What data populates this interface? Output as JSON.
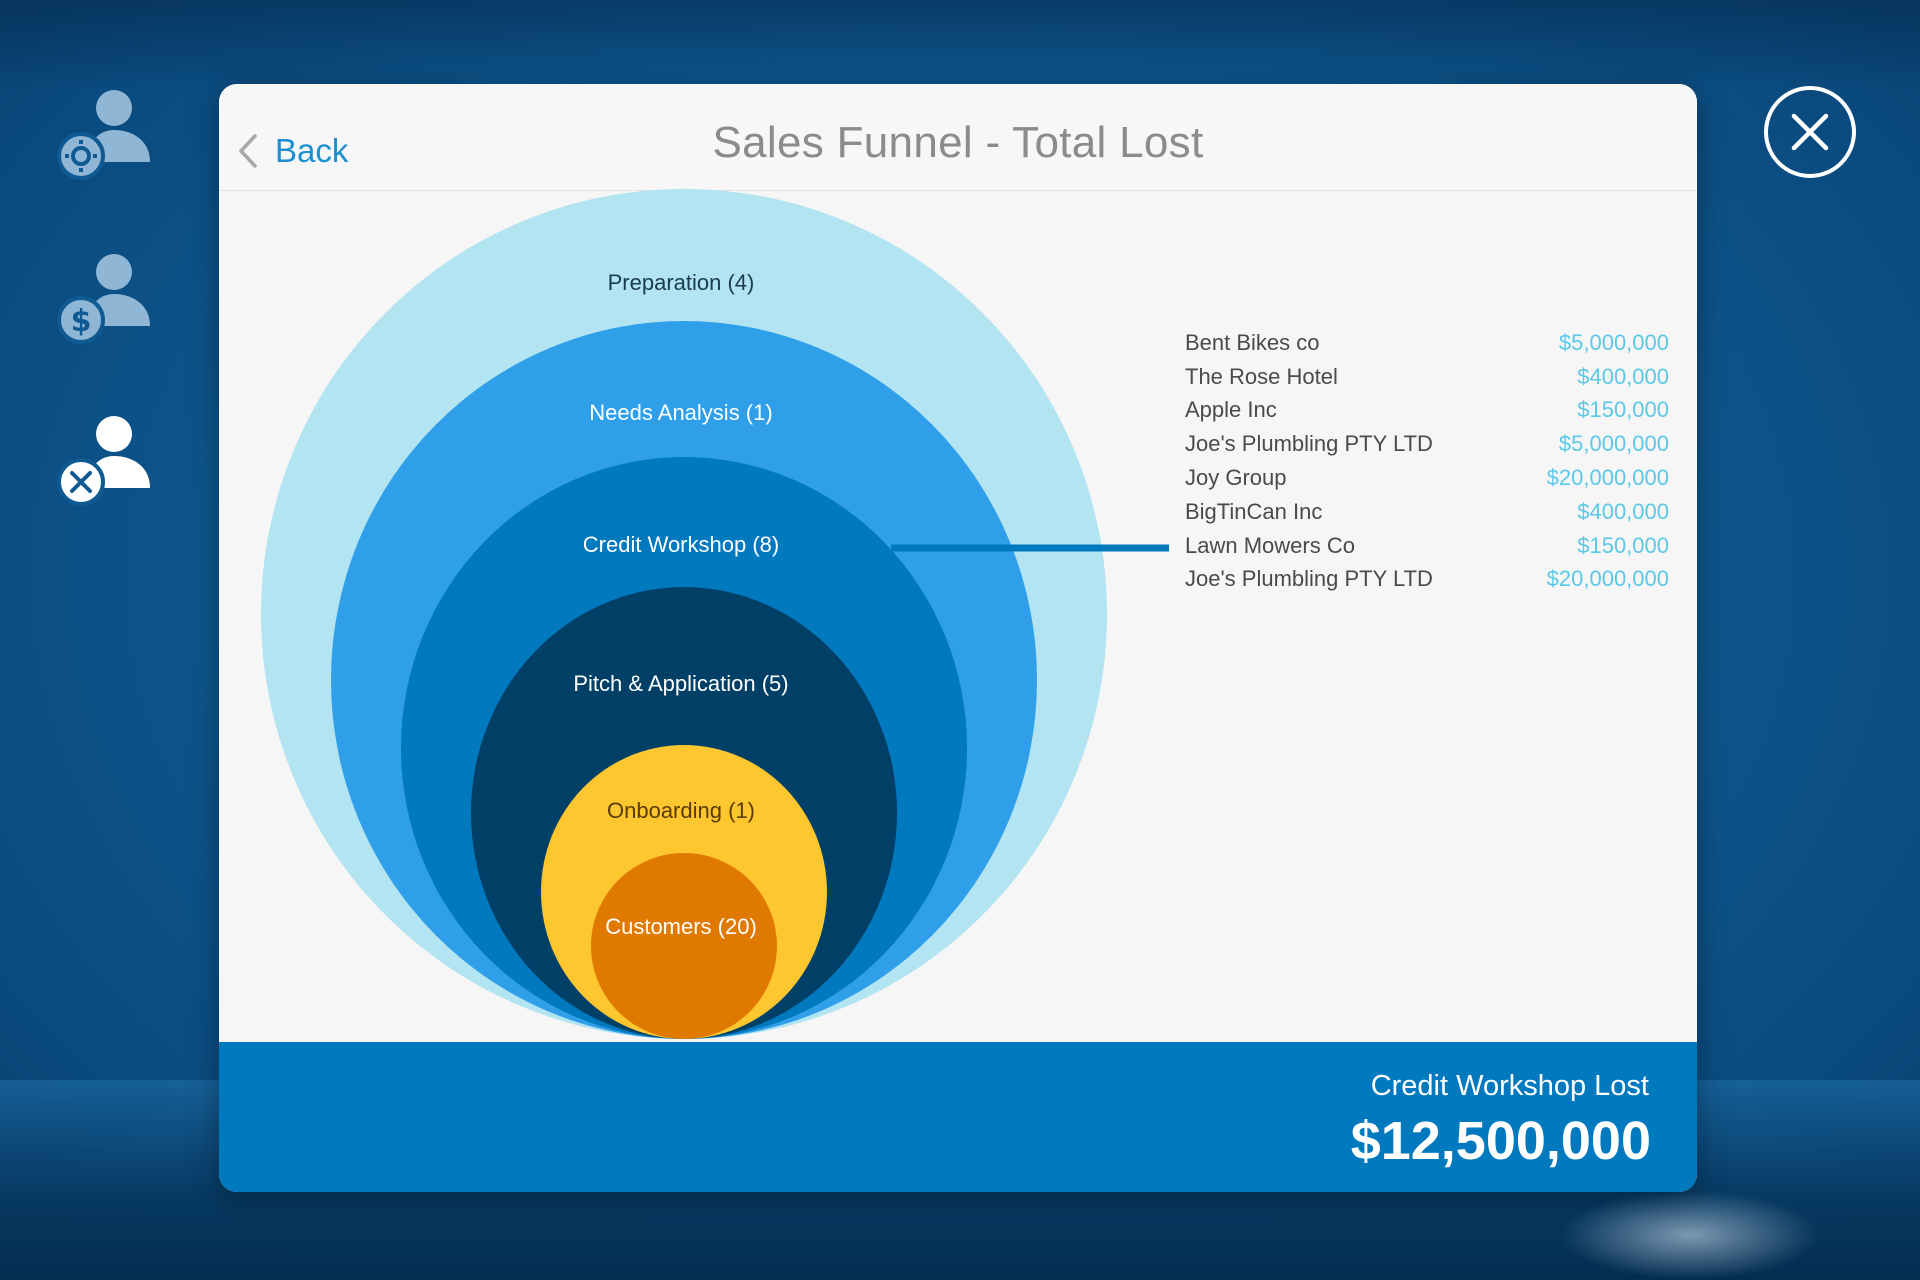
{
  "header": {
    "back_label": "Back",
    "title": "Sales Funnel - Total Lost"
  },
  "side_nav": {
    "items": [
      {
        "icon": "user-gear-icon",
        "active": false
      },
      {
        "icon": "user-dollar-icon",
        "active": false
      },
      {
        "icon": "user-cross-icon",
        "active": true
      }
    ]
  },
  "close": {
    "icon": "close-icon"
  },
  "colors": {
    "accent": "#1b8fcf",
    "value_text": "#5bc8e8",
    "footer_bg": "#0179bf",
    "preparation": "#b2e4f2",
    "needs_analysis": "#2e9fe8",
    "credit_workshop": "#0179bf",
    "pitch_application": "#003f66",
    "onboarding": "#fec62f",
    "customers": "#e07900"
  },
  "funnel": {
    "stages": [
      {
        "label": "Preparation (4)"
      },
      {
        "label": "Needs Analysis (1)"
      },
      {
        "label": "Credit Workshop (8)"
      },
      {
        "label": "Pitch & Application (5)"
      },
      {
        "label": "Onboarding (1)"
      },
      {
        "label": "Customers (20)"
      }
    ],
    "selected_stage": "Credit Workshop (8)"
  },
  "deals": [
    {
      "name": "Bent Bikes co",
      "value": "$5,000,000"
    },
    {
      "name": "The Rose Hotel",
      "value": "$400,000"
    },
    {
      "name": "Apple Inc",
      "value": "$150,000"
    },
    {
      "name": "Joe's Plumbling PTY LTD",
      "value": "$5,000,000"
    },
    {
      "name": "Joy Group",
      "value": "$20,000,000"
    },
    {
      "name": "BigTinCan Inc",
      "value": "$400,000"
    },
    {
      "name": "Lawn Mowers Co",
      "value": "$150,000"
    },
    {
      "name": "Joe's Plumbling PTY LTD",
      "value": "$20,000,000"
    }
  ],
  "footer": {
    "label": "Credit Workshop Lost",
    "amount": "$12,500,000"
  }
}
